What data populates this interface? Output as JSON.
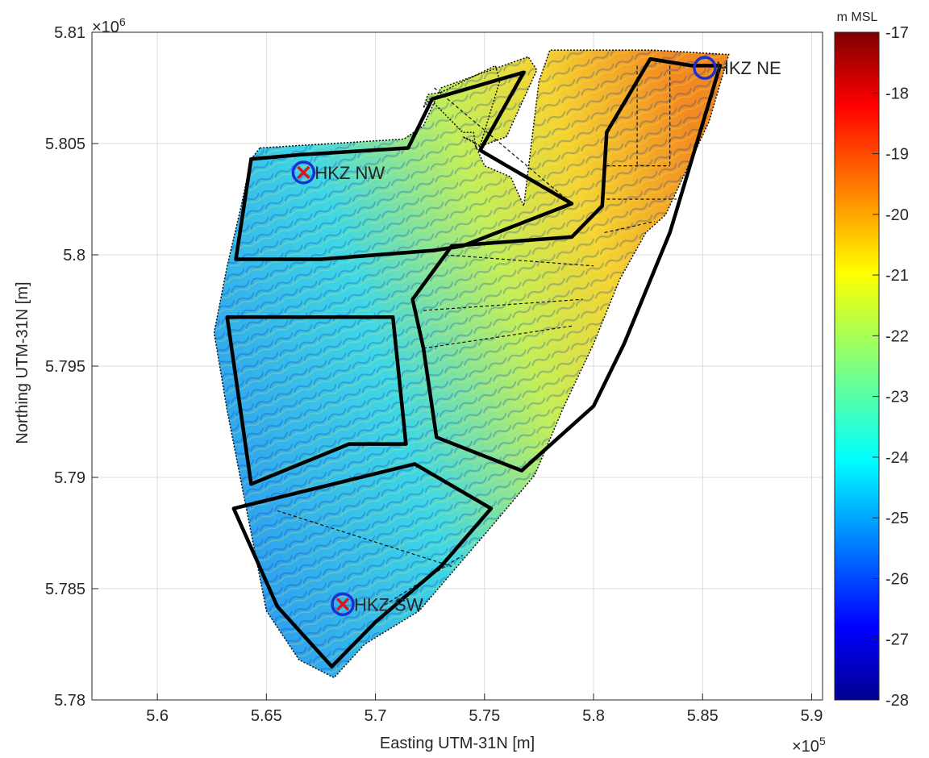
{
  "figure": {
    "xlabel": "Easting UTM-31N [m]",
    "ylabel": "Northing UTM-31N [m]",
    "x_exponent": "×10",
    "x_exponent_power": "5",
    "y_exponent": "×10",
    "y_exponent_power": "6",
    "colorbar_title": "m MSL"
  },
  "chart_data": {
    "type": "heatmap",
    "xlim": [
      5.57,
      5.905
    ],
    "ylim": [
      5.78,
      5.81
    ],
    "x_ticks": [
      "5.6",
      "5.65",
      "5.7",
      "5.75",
      "5.8",
      "5.85",
      "5.9"
    ],
    "x_tick_values": [
      5.6,
      5.65,
      5.7,
      5.75,
      5.8,
      5.85,
      5.9
    ],
    "y_ticks": [
      "5.78",
      "5.785",
      "5.79",
      "5.795",
      "5.8",
      "5.805",
      "5.81"
    ],
    "y_tick_values": [
      5.78,
      5.785,
      5.79,
      5.795,
      5.8,
      5.805,
      5.81
    ],
    "grid": true,
    "colorbar": {
      "min": -28,
      "max": -17,
      "ticks": [
        "-17",
        "-18",
        "-19",
        "-20",
        "-21",
        "-22",
        "-23",
        "-24",
        "-25",
        "-26",
        "-27",
        "-28"
      ],
      "tick_values": [
        -17,
        -18,
        -19,
        -20,
        -21,
        -22,
        -23,
        -24,
        -25,
        -26,
        -27,
        -28
      ],
      "colormap": "jet"
    },
    "stations": [
      {
        "label": "HKZ NE",
        "x": 5.851,
        "y": 5.8084,
        "marker": "blue circle"
      },
      {
        "label": "HKZ NW",
        "x": 5.667,
        "y": 5.8037,
        "marker": "blue circle with red cross"
      },
      {
        "label": "HKZ SW",
        "x": 5.685,
        "y": 5.7843,
        "marker": "blue circle with red cross"
      }
    ],
    "survey_area": [
      [
        5.647,
        5.8048
      ],
      [
        5.713,
        5.8052
      ],
      [
        5.722,
        5.8058
      ],
      [
        5.73,
        5.8075
      ],
      [
        5.77,
        5.8089
      ],
      [
        5.774,
        5.8083
      ],
      [
        5.76,
        5.8053
      ],
      [
        5.746,
        5.8048
      ],
      [
        5.745,
        5.8055
      ],
      [
        5.74,
        5.8055
      ],
      [
        5.725,
        5.807
      ],
      [
        5.722,
        5.8066
      ],
      [
        5.724,
        5.8072
      ],
      [
        5.73,
        5.8073
      ],
      [
        5.755,
        5.8085
      ],
      [
        5.757,
        5.8078
      ],
      [
        5.748,
        5.8049
      ],
      [
        5.74,
        5.8053
      ],
      [
        5.745,
        5.8051
      ],
      [
        5.75,
        5.804
      ],
      [
        5.762,
        5.8035
      ],
      [
        5.768,
        5.8022
      ],
      [
        5.775,
        5.8078
      ],
      [
        5.78,
        5.8092
      ],
      [
        5.827,
        5.8092
      ],
      [
        5.862,
        5.809
      ],
      [
        5.853,
        5.806
      ],
      [
        5.833,
        5.8018
      ],
      [
        5.824,
        5.801
      ],
      [
        5.812,
        5.7989
      ],
      [
        5.8,
        5.796
      ],
      [
        5.786,
        5.7931
      ],
      [
        5.773,
        5.7901
      ],
      [
        5.755,
        5.788
      ],
      [
        5.72,
        5.784
      ],
      [
        5.695,
        5.7825
      ],
      [
        5.681,
        5.781
      ],
      [
        5.665,
        5.7818
      ],
      [
        5.65,
        5.784
      ],
      [
        5.644,
        5.787
      ],
      [
        5.638,
        5.79
      ],
      [
        5.632,
        5.793
      ],
      [
        5.626,
        5.7965
      ],
      [
        5.632,
        5.7995
      ],
      [
        5.638,
        5.802
      ],
      [
        5.643,
        5.8043
      ]
    ],
    "wind_farm_zones": [
      [
        [
          5.643,
          5.8043
        ],
        [
          5.666,
          5.8045
        ],
        [
          5.715,
          5.8048
        ],
        [
          5.726,
          5.807
        ],
        [
          5.768,
          5.8082
        ],
        [
          5.748,
          5.8047
        ],
        [
          5.79,
          5.8023
        ],
        [
          5.74,
          5.8004
        ],
        [
          5.727,
          5.8002
        ],
        [
          5.675,
          5.7998
        ],
        [
          5.636,
          5.7998
        ]
      ],
      [
        [
          5.632,
          5.7972
        ],
        [
          5.708,
          5.7972
        ],
        [
          5.714,
          5.7915
        ],
        [
          5.688,
          5.7915
        ],
        [
          5.643,
          5.7897
        ]
      ],
      [
        [
          5.826,
          5.8088
        ],
        [
          5.845,
          5.8085
        ],
        [
          5.858,
          5.8085
        ],
        [
          5.835,
          5.801
        ],
        [
          5.814,
          5.796
        ],
        [
          5.8,
          5.7932
        ],
        [
          5.767,
          5.7903
        ],
        [
          5.728,
          5.7918
        ],
        [
          5.722,
          5.7958
        ],
        [
          5.717,
          5.798
        ],
        [
          5.735,
          5.8004
        ],
        [
          5.79,
          5.8008
        ],
        [
          5.804,
          5.8022
        ],
        [
          5.806,
          5.8055
        ]
      ],
      [
        [
          5.635,
          5.7886
        ],
        [
          5.718,
          5.7906
        ],
        [
          5.753,
          5.7886
        ],
        [
          5.73,
          5.786
        ],
        [
          5.7,
          5.7835
        ],
        [
          5.68,
          5.7815
        ],
        [
          5.655,
          5.7842
        ]
      ]
    ]
  }
}
